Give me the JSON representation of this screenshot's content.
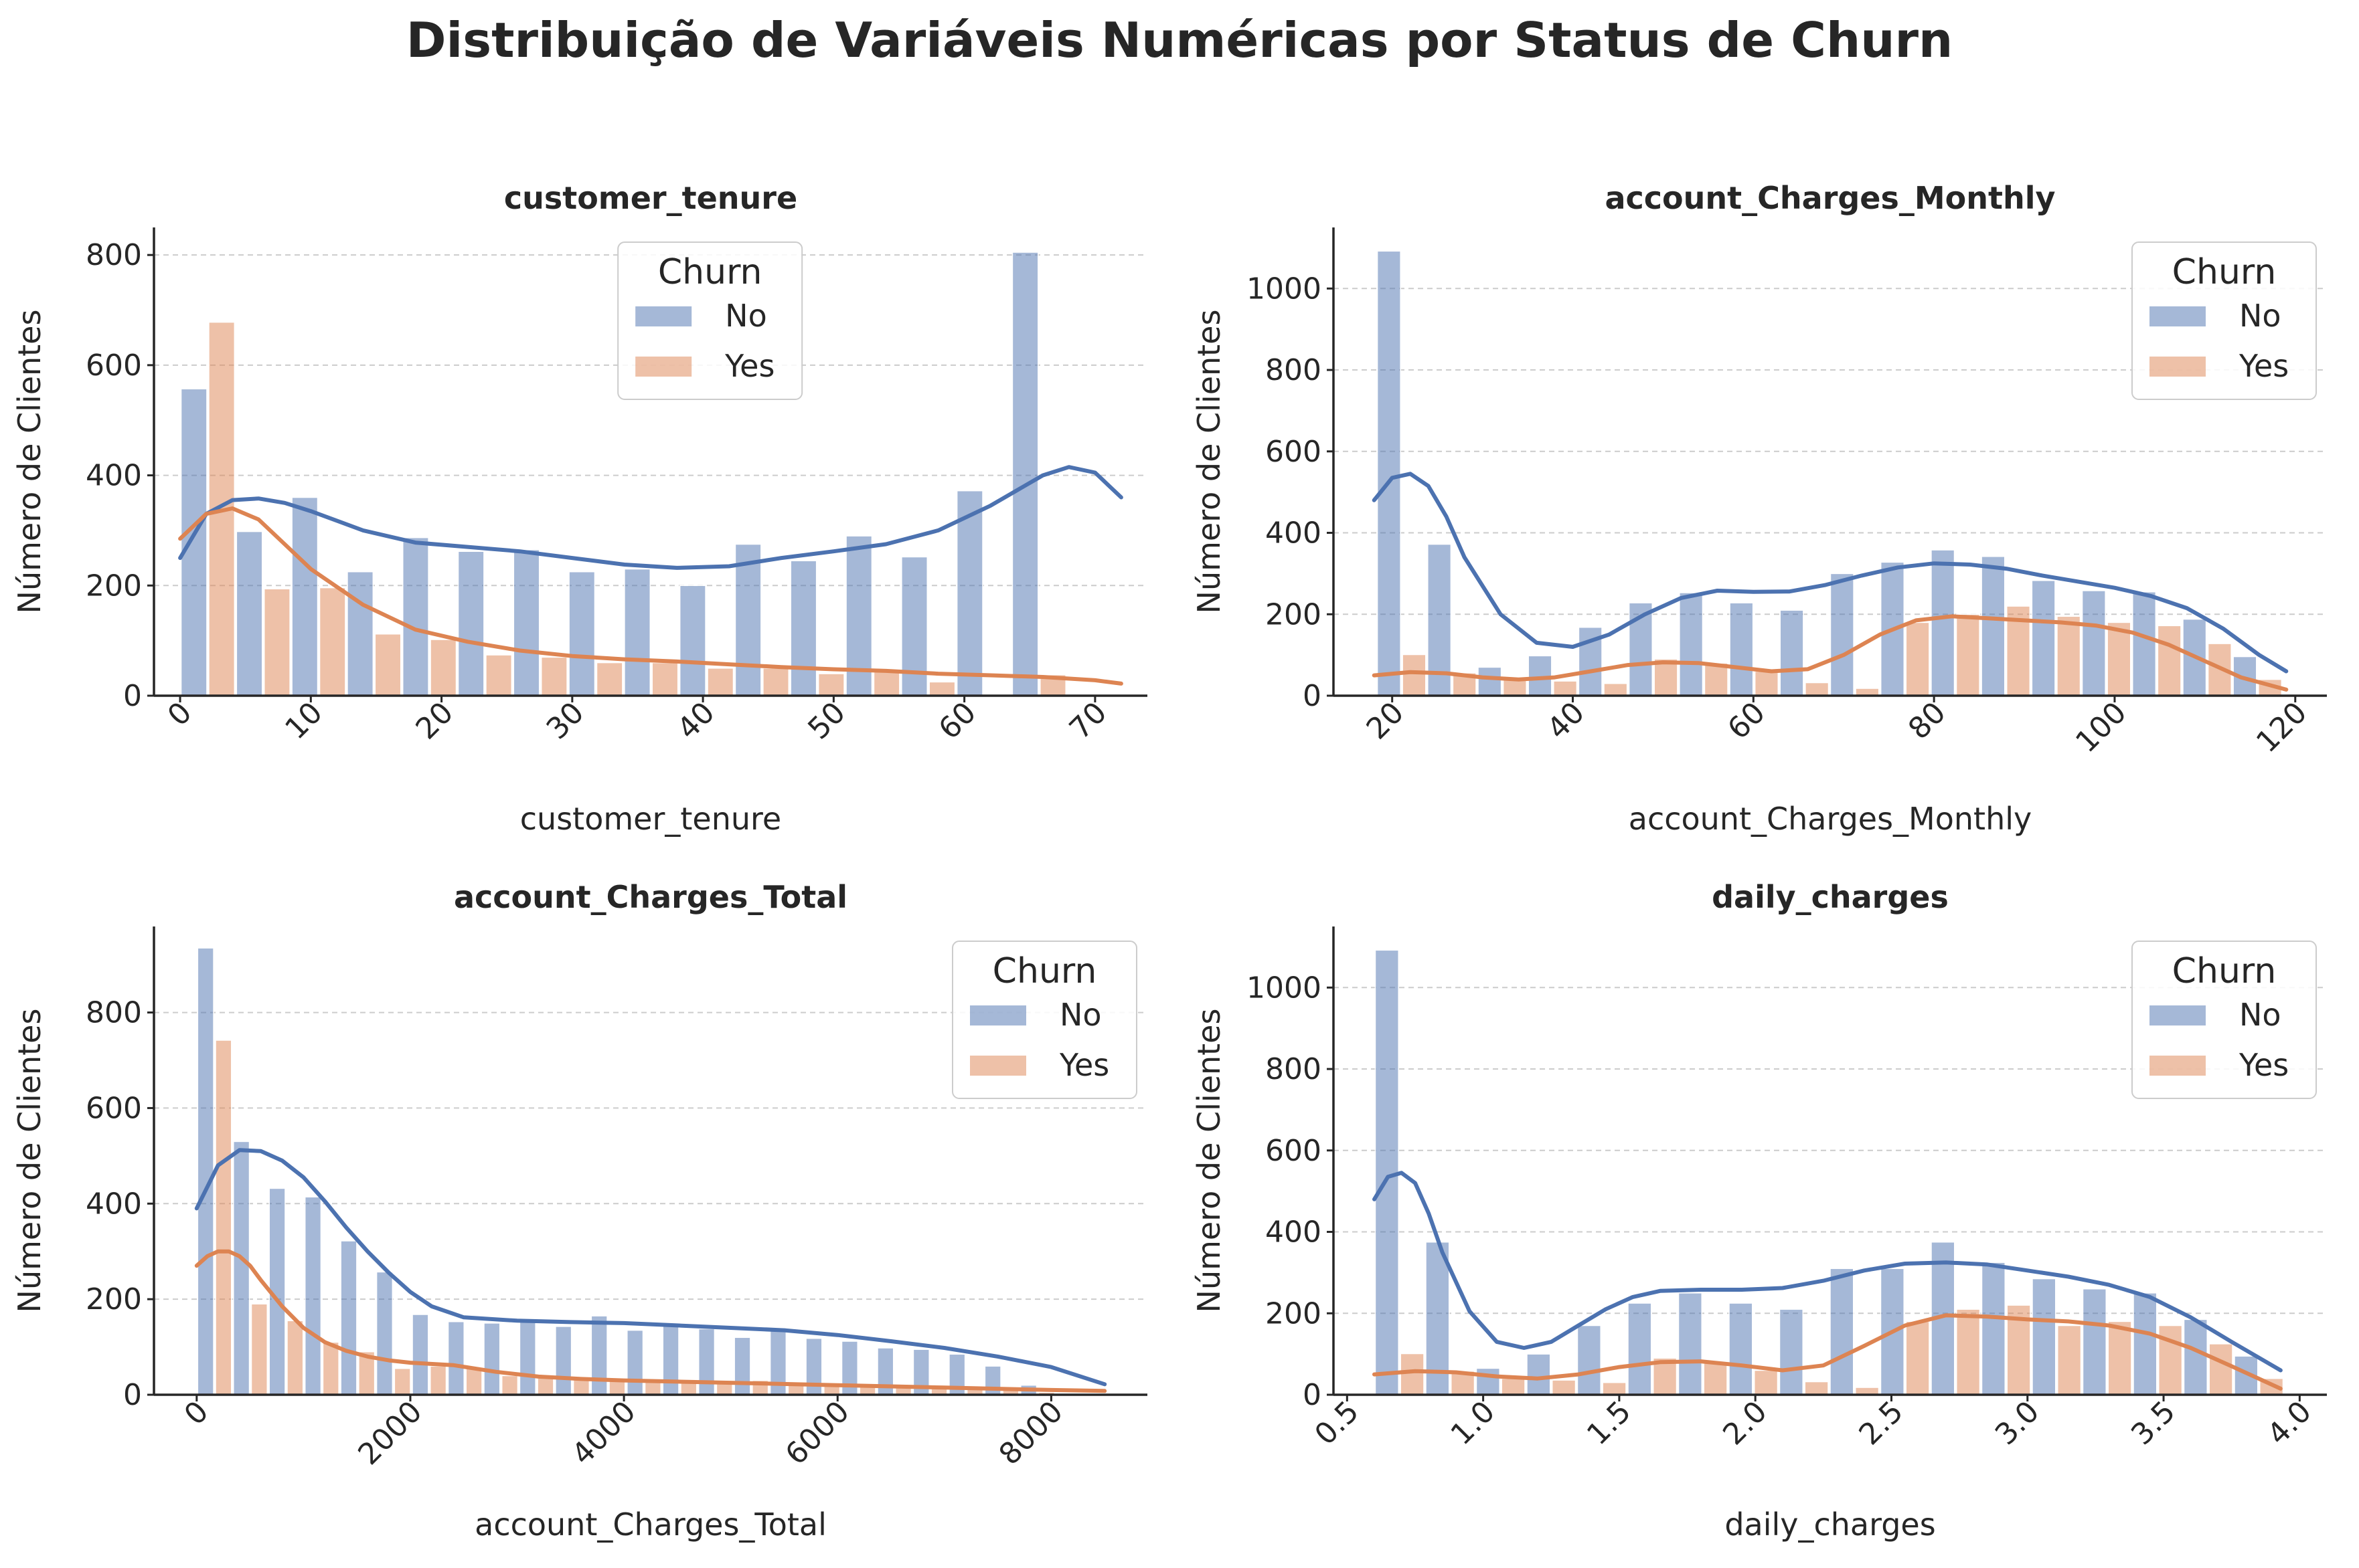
{
  "title": "Distribuição de Variáveis Numéricas por Status de Churn",
  "colors": {
    "no": "#4c72b0",
    "yes": "#dd8452"
  },
  "chart_data": [
    {
      "type": "bar",
      "title": "customer_tenure",
      "xlabel": "customer_tenure",
      "ylabel": "Número de Clientes",
      "xlim": [
        -2,
        74
      ],
      "ylim": [
        0,
        850
      ],
      "xticks": [
        0,
        10,
        20,
        30,
        40,
        50,
        60,
        70
      ],
      "yticks": [
        0,
        200,
        400,
        600,
        800
      ],
      "bin_start": 0,
      "bin_width": 4.24,
      "legend": {
        "title": "Churn",
        "entries": [
          "No",
          "Yes"
        ],
        "position": "top-center"
      },
      "series": [
        {
          "name": "No",
          "values": [
            557,
            298,
            360,
            225,
            287,
            262,
            265,
            225,
            230,
            200,
            275,
            245,
            290,
            252,
            372,
            805
          ]
        },
        {
          "name": "Yes",
          "values": [
            678,
            194,
            196,
            112,
            102,
            74,
            70,
            60,
            60,
            50,
            50,
            40,
            48,
            25,
            0,
            38
          ]
        }
      ],
      "kde": [
        {
          "name": "No",
          "x": [
            0,
            2,
            4,
            6,
            8,
            10,
            14,
            18,
            22,
            26,
            30,
            34,
            38,
            42,
            46,
            50,
            54,
            58,
            62,
            66,
            68,
            70,
            72
          ],
          "y": [
            250,
            330,
            355,
            358,
            350,
            335,
            300,
            278,
            270,
            262,
            250,
            238,
            232,
            235,
            250,
            262,
            275,
            300,
            345,
            400,
            415,
            405,
            360
          ]
        },
        {
          "name": "Yes",
          "x": [
            0,
            2,
            4,
            6,
            8,
            10,
            14,
            18,
            22,
            26,
            30,
            34,
            38,
            42,
            46,
            50,
            54,
            58,
            62,
            66,
            70,
            72
          ],
          "y": [
            285,
            330,
            340,
            320,
            275,
            230,
            165,
            120,
            98,
            82,
            72,
            66,
            62,
            57,
            52,
            48,
            45,
            40,
            37,
            34,
            28,
            22
          ]
        }
      ]
    },
    {
      "type": "bar",
      "title": "account_Charges_Monthly",
      "xlabel": "account_Charges_Monthly",
      "ylabel": "Número de Clientes",
      "xlim": [
        13.5,
        123.5
      ],
      "ylim": [
        0,
        1150
      ],
      "xticks": [
        20,
        40,
        60,
        80,
        100,
        120
      ],
      "yticks": [
        0,
        200,
        400,
        600,
        800,
        1000
      ],
      "bin_start": 18.25,
      "bin_width": 5.575,
      "legend": {
        "title": "Churn",
        "entries": [
          "No",
          "Yes"
        ],
        "position": "top-right"
      },
      "series": [
        {
          "name": "No",
          "values": [
            1092,
            372,
            70,
            98,
            168,
            228,
            253,
            228,
            210,
            300,
            328,
            358,
            342,
            283,
            258,
            255,
            188,
            96
          ]
        },
        {
          "name": "Yes",
          "values": [
            101,
            56,
            40,
            36,
            30,
            90,
            80,
            60,
            32,
            18,
            180,
            200,
            220,
            195,
            180,
            172,
            128,
            40
          ]
        }
      ],
      "kde": [
        {
          "name": "No",
          "x": [
            18,
            20,
            22,
            24,
            26,
            28,
            32,
            36,
            40,
            44,
            48,
            52,
            56,
            60,
            64,
            68,
            72,
            76,
            80,
            84,
            88,
            92,
            96,
            100,
            104,
            108,
            112,
            116,
            119
          ],
          "y": [
            480,
            535,
            545,
            515,
            440,
            340,
            200,
            130,
            120,
            150,
            200,
            240,
            258,
            255,
            256,
            272,
            295,
            315,
            325,
            322,
            312,
            295,
            280,
            265,
            245,
            215,
            165,
            100,
            60
          ]
        },
        {
          "name": "Yes",
          "x": [
            18,
            22,
            26,
            30,
            34,
            38,
            42,
            46,
            50,
            54,
            58,
            62,
            66,
            70,
            74,
            78,
            82,
            86,
            90,
            94,
            98,
            102,
            106,
            110,
            114,
            119
          ],
          "y": [
            50,
            58,
            55,
            45,
            40,
            45,
            60,
            75,
            82,
            80,
            70,
            60,
            65,
            100,
            150,
            185,
            195,
            190,
            185,
            180,
            172,
            155,
            125,
            85,
            45,
            15
          ]
        }
      ]
    },
    {
      "type": "bar",
      "title": "account_Charges_Total",
      "xlabel": "account_Charges_Total",
      "ylabel": "Número de Clientes",
      "xlim": [
        -400,
        8900
      ],
      "ylim": [
        0,
        980
      ],
      "xticks": [
        0,
        2000,
        4000,
        6000,
        8000
      ],
      "yticks": [
        0,
        200,
        400,
        600,
        800
      ],
      "bin_start": 0,
      "bin_width": 335,
      "legend": {
        "title": "Churn",
        "entries": [
          "No",
          "Yes"
        ],
        "position": "top-right"
      },
      "series": [
        {
          "name": "No",
          "values": [
            935,
            530,
            432,
            414,
            322,
            257,
            168,
            153,
            150,
            155,
            143,
            165,
            135,
            145,
            138,
            120,
            140,
            118,
            112,
            98,
            95,
            85,
            60,
            20
          ]
        },
        {
          "name": "Yes",
          "values": [
            742,
            190,
            155,
            110,
            90,
            55,
            60,
            55,
            40,
            35,
            35,
            30,
            30,
            30,
            25,
            30,
            25,
            20,
            20,
            15,
            15,
            15,
            15,
            5
          ]
        }
      ],
      "kde": [
        {
          "name": "No",
          "x": [
            0,
            200,
            400,
            600,
            800,
            1000,
            1200,
            1400,
            1600,
            1800,
            2000,
            2200,
            2500,
            3000,
            3500,
            4000,
            4500,
            5000,
            5500,
            6000,
            6500,
            7000,
            7500,
            8000,
            8500
          ],
          "y": [
            390,
            480,
            512,
            510,
            490,
            455,
            405,
            350,
            300,
            255,
            215,
            185,
            162,
            155,
            152,
            150,
            145,
            140,
            135,
            125,
            112,
            98,
            80,
            58,
            22
          ]
        },
        {
          "name": "Yes",
          "x": [
            0,
            100,
            200,
            300,
            400,
            500,
            600,
            800,
            1000,
            1200,
            1400,
            1600,
            1800,
            2000,
            2400,
            2800,
            3200,
            3600,
            4000,
            5000,
            6000,
            7000,
            8000,
            8500
          ],
          "y": [
            270,
            290,
            300,
            300,
            290,
            270,
            240,
            185,
            140,
            110,
            92,
            80,
            72,
            67,
            62,
            48,
            38,
            33,
            30,
            25,
            20,
            15,
            10,
            8
          ]
        }
      ]
    },
    {
      "type": "bar",
      "title": "daily_charges",
      "xlabel": "daily_charges",
      "ylabel": "Número de Clientes",
      "xlim": [
        0.45,
        4.1
      ],
      "ylim": [
        0,
        1150
      ],
      "xticks": [
        0.5,
        1.0,
        1.5,
        2.0,
        2.5,
        3.0,
        3.5,
        4.0
      ],
      "xtick_labels": [
        "0.5",
        "1.0",
        "1.5",
        "2.0",
        "2.5",
        "3.0",
        "3.5",
        "4.0"
      ],
      "yticks": [
        0,
        200,
        400,
        600,
        800,
        1000
      ],
      "bin_start": 0.6,
      "bin_width": 0.1857,
      "legend": {
        "title": "Churn",
        "entries": [
          "No",
          "Yes"
        ],
        "position": "top-right"
      },
      "series": [
        {
          "name": "No",
          "values": [
            1092,
            375,
            65,
            100,
            170,
            225,
            250,
            225,
            210,
            310,
            310,
            375,
            325,
            285,
            260,
            250,
            185,
            95
          ]
        },
        {
          "name": "Yes",
          "values": [
            101,
            58,
            40,
            36,
            30,
            90,
            80,
            60,
            32,
            18,
            180,
            210,
            220,
            170,
            180,
            170,
            125,
            40
          ]
        }
      ],
      "kde": [
        {
          "name": "No",
          "x": [
            0.6,
            0.65,
            0.7,
            0.75,
            0.8,
            0.85,
            0.95,
            1.05,
            1.15,
            1.25,
            1.35,
            1.45,
            1.55,
            1.65,
            1.8,
            1.95,
            2.1,
            2.25,
            2.4,
            2.55,
            2.7,
            2.85,
            3.0,
            3.15,
            3.3,
            3.45,
            3.6,
            3.75,
            3.93
          ],
          "y": [
            480,
            535,
            545,
            520,
            445,
            350,
            205,
            130,
            115,
            130,
            170,
            210,
            240,
            255,
            258,
            258,
            262,
            280,
            305,
            322,
            325,
            320,
            305,
            290,
            270,
            240,
            190,
            130,
            60
          ]
        },
        {
          "name": "Yes",
          "x": [
            0.6,
            0.75,
            0.9,
            1.05,
            1.2,
            1.35,
            1.5,
            1.65,
            1.8,
            1.95,
            2.1,
            2.25,
            2.4,
            2.55,
            2.7,
            2.85,
            3.0,
            3.15,
            3.3,
            3.45,
            3.6,
            3.75,
            3.93
          ],
          "y": [
            50,
            58,
            55,
            45,
            40,
            50,
            68,
            80,
            82,
            72,
            60,
            72,
            120,
            170,
            195,
            192,
            185,
            180,
            170,
            150,
            115,
            70,
            15
          ]
        }
      ]
    }
  ]
}
